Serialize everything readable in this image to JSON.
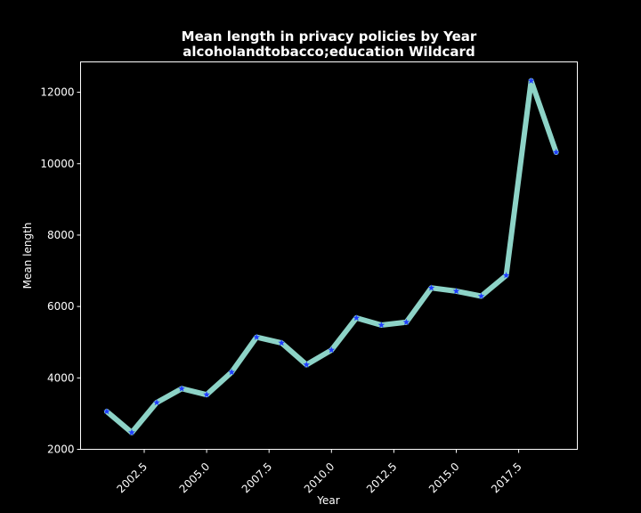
{
  "chart_data": {
    "type": "line",
    "title": "Mean length in privacy policies by Year",
    "subtitle": "alcoholandtobacco;education Wildcard",
    "xlabel": "Year",
    "ylabel": "Mean length",
    "xlim": [
      1999.95,
      2019.85
    ],
    "ylim": [
      2000,
      12850
    ],
    "xticks": [
      2002.5,
      2005.0,
      2007.5,
      2010.0,
      2012.5,
      2015.0,
      2017.5
    ],
    "xtick_labels": [
      "2002.5",
      "2005.0",
      "2007.5",
      "2010.0",
      "2012.5",
      "2015.0",
      "2017.5"
    ],
    "yticks": [
      2000,
      4000,
      6000,
      8000,
      10000,
      12000
    ],
    "ytick_labels": [
      "2000",
      "4000",
      "6000",
      "8000",
      "10000",
      "12000"
    ],
    "grid": false,
    "series": [
      {
        "x": [
          2001,
          2002,
          2003,
          2004,
          2005,
          2006,
          2007,
          2008,
          2009,
          2010,
          2011,
          2012,
          2013,
          2014,
          2015,
          2016,
          2017,
          2018,
          2019
        ],
        "y": [
          3060,
          2470,
          3310,
          3700,
          3530,
          4160,
          5140,
          4980,
          4370,
          4780,
          5680,
          5480,
          5560,
          6520,
          6430,
          6290,
          6870,
          12320,
          10320
        ],
        "line_color": "#8dd3c7",
        "marker_color": "#1f3cff",
        "marker": "star"
      }
    ]
  }
}
